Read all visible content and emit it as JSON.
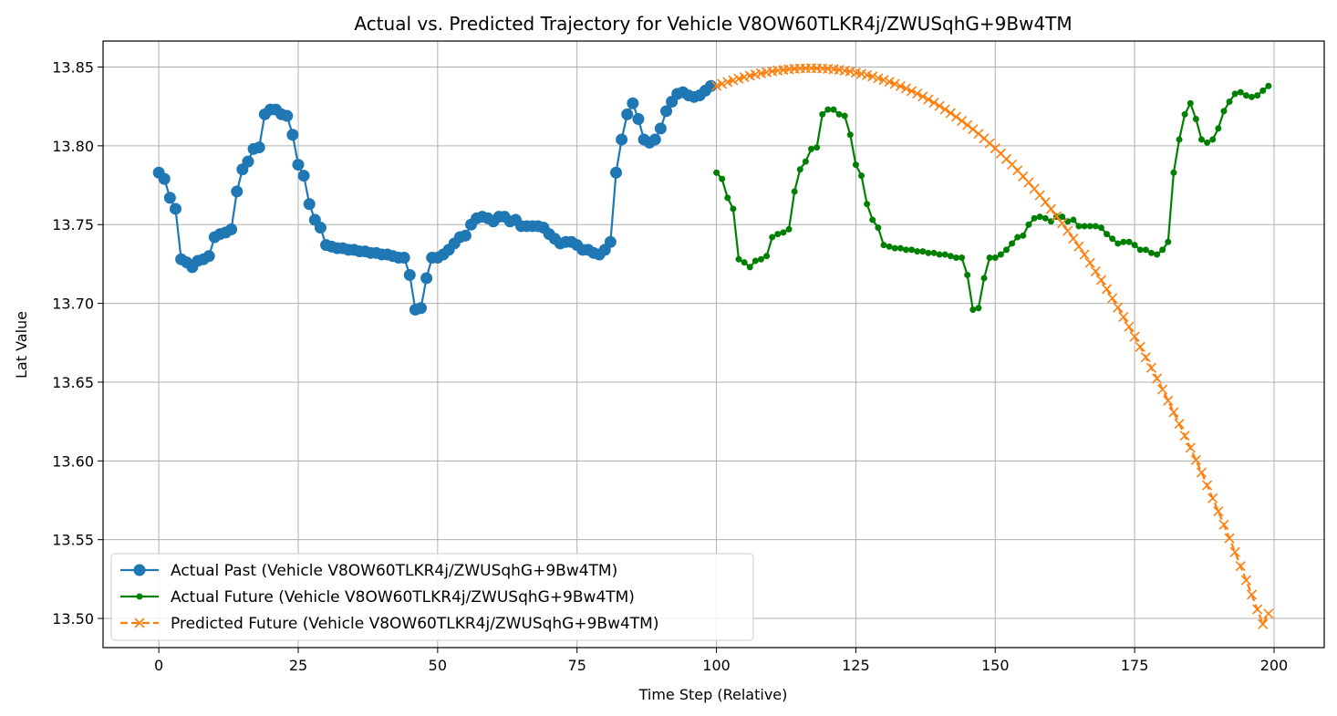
{
  "chart_data": {
    "type": "line",
    "title": "Actual vs. Predicted Trajectory for Vehicle V8OW60TLKR4j/ZWUSqhG+9Bw4TM",
    "xlabel": "Time Step (Relative)",
    "ylabel": "Lat Value",
    "xlim": [
      -10,
      209
    ],
    "ylim": [
      13.4815,
      13.8665
    ],
    "xticks": [
      0,
      25,
      50,
      75,
      100,
      125,
      150,
      175,
      200
    ],
    "yticks": [
      13.5,
      13.55,
      13.6,
      13.65,
      13.7,
      13.75,
      13.8,
      13.85
    ],
    "xtick_labels": [
      "0",
      "25",
      "50",
      "75",
      "100",
      "125",
      "150",
      "175",
      "200"
    ],
    "ytick_labels": [
      "13.50",
      "13.55",
      "13.60",
      "13.65",
      "13.70",
      "13.75",
      "13.80",
      "13.85"
    ],
    "grid": true,
    "legend_position": "lower-left",
    "series": [
      {
        "name": "Actual Past (Vehicle V8OW60TLKR4j/ZWUSqhG+9Bw4TM)",
        "color": "#1f77b4",
        "marker": "circle",
        "x_start": 0,
        "values": [
          13.783,
          13.779,
          13.767,
          13.76,
          13.728,
          13.726,
          13.723,
          13.727,
          13.728,
          13.73,
          13.742,
          13.744,
          13.745,
          13.747,
          13.771,
          13.785,
          13.79,
          13.798,
          13.799,
          13.82,
          13.823,
          13.823,
          13.82,
          13.819,
          13.807,
          13.788,
          13.781,
          13.763,
          13.753,
          13.748,
          13.737,
          13.736,
          13.735,
          13.735,
          13.734,
          13.734,
          13.733,
          13.733,
          13.732,
          13.732,
          13.731,
          13.731,
          13.73,
          13.729,
          13.729,
          13.718,
          13.696,
          13.697,
          13.716,
          13.729,
          13.729,
          13.731,
          13.734,
          13.738,
          13.742,
          13.743,
          13.75,
          13.754,
          13.755,
          13.754,
          13.752,
          13.755,
          13.755,
          13.752,
          13.753,
          13.749,
          13.749,
          13.749,
          13.749,
          13.748,
          13.744,
          13.741,
          13.738,
          13.739,
          13.739,
          13.737,
          13.734,
          13.734,
          13.732,
          13.731,
          13.734,
          13.739,
          13.783,
          13.804,
          13.82,
          13.827,
          13.817,
          13.804,
          13.802,
          13.804,
          13.811,
          13.822,
          13.828,
          13.833,
          13.834,
          13.832,
          13.831,
          13.832,
          13.835,
          13.838
        ]
      },
      {
        "name": "Actual Future (Vehicle V8OW60TLKR4j/ZWUSqhG+9Bw4TM)",
        "color": "#008000",
        "marker": "small-dot",
        "x_start": 100,
        "values": [
          13.783,
          13.779,
          13.767,
          13.76,
          13.728,
          13.726,
          13.723,
          13.727,
          13.728,
          13.73,
          13.742,
          13.744,
          13.745,
          13.747,
          13.771,
          13.785,
          13.79,
          13.798,
          13.799,
          13.82,
          13.823,
          13.823,
          13.82,
          13.819,
          13.807,
          13.788,
          13.781,
          13.763,
          13.753,
          13.748,
          13.737,
          13.736,
          13.735,
          13.735,
          13.734,
          13.734,
          13.733,
          13.733,
          13.732,
          13.732,
          13.731,
          13.731,
          13.73,
          13.729,
          13.729,
          13.718,
          13.696,
          13.697,
          13.716,
          13.729,
          13.729,
          13.731,
          13.734,
          13.738,
          13.742,
          13.743,
          13.75,
          13.754,
          13.755,
          13.754,
          13.752,
          13.755,
          13.755,
          13.752,
          13.753,
          13.749,
          13.749,
          13.749,
          13.749,
          13.748,
          13.744,
          13.741,
          13.738,
          13.739,
          13.739,
          13.737,
          13.734,
          13.734,
          13.732,
          13.731,
          13.734,
          13.739,
          13.783,
          13.804,
          13.82,
          13.827,
          13.817,
          13.804,
          13.802,
          13.804,
          13.811,
          13.822,
          13.828,
          13.833,
          13.834,
          13.832,
          13.831,
          13.832,
          13.835,
          13.838
        ]
      },
      {
        "name": "Predicted Future (Vehicle V8OW60TLKR4j/ZWUSqhG+9Bw4TM)",
        "color": "#ff7f0e",
        "marker": "x",
        "x_start": 100,
        "values": [
          13.838,
          13.8393,
          13.8405,
          13.8416,
          13.8426,
          13.8436,
          13.8445,
          13.8453,
          13.846,
          13.8467,
          13.8473,
          13.8478,
          13.8482,
          13.8486,
          13.8489,
          13.8491,
          13.8492,
          13.8493,
          13.8492,
          13.8491,
          13.8489,
          13.8486,
          13.8482,
          13.8477,
          13.8472,
          13.8465,
          13.8457,
          13.8449,
          13.844,
          13.8429,
          13.8418,
          13.8406,
          13.8393,
          13.8379,
          13.8364,
          13.8348,
          13.8331,
          13.8313,
          13.8294,
          13.8274,
          13.8253,
          13.8231,
          13.8208,
          13.8184,
          13.8158,
          13.8132,
          13.8105,
          13.8076,
          13.8047,
          13.8016,
          13.7984,
          13.7951,
          13.7916,
          13.7881,
          13.7844,
          13.7806,
          13.7767,
          13.7727,
          13.7686,
          13.7643,
          13.7599,
          13.7554,
          13.7508,
          13.746,
          13.7411,
          13.7361,
          13.731,
          13.7257,
          13.7203,
          13.7148,
          13.7091,
          13.7033,
          13.6974,
          13.6914,
          13.6852,
          13.6789,
          13.6724,
          13.6658,
          13.6591,
          13.6523,
          13.6453,
          13.6382,
          13.6309,
          13.6235,
          13.616,
          13.6083,
          13.6005,
          13.5926,
          13.5845,
          13.5763,
          13.568,
          13.5595,
          13.5509,
          13.5421,
          13.5332,
          13.5242,
          13.5151,
          13.5058,
          13.4964,
          13.503
        ]
      }
    ]
  }
}
